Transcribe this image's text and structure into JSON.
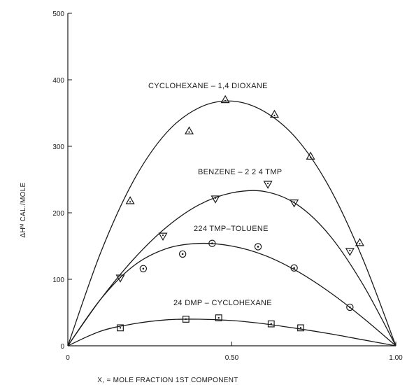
{
  "chart_data": {
    "type": "scatter",
    "xlabel": "X, = MOLE FRACTION 1ST COMPONENT",
    "ylabel": "ΔHᴹ CAL./MOLE",
    "xlim": [
      0,
      1
    ],
    "ylim": [
      0,
      500
    ],
    "x_ticks": [
      {
        "value": 0,
        "label": "0"
      },
      {
        "value": 0.5,
        "label": "0.50"
      },
      {
        "value": 1,
        "label": "1.00"
      }
    ],
    "y_ticks": [
      {
        "value": 0,
        "label": "0"
      },
      {
        "value": 100,
        "label": "100"
      },
      {
        "value": 200,
        "label": "200"
      },
      {
        "value": 300,
        "label": "300"
      },
      {
        "value": 400,
        "label": "400"
      },
      {
        "value": 500,
        "label": "500"
      }
    ],
    "series": [
      {
        "name": "CYCLOHEXANE – 1,4 DIOXANE",
        "marker": "triangle-up",
        "points": [
          [
            0.19,
            218
          ],
          [
            0.37,
            323
          ],
          [
            0.48,
            370
          ],
          [
            0.63,
            348
          ],
          [
            0.74,
            285
          ],
          [
            0.89,
            155
          ]
        ],
        "curve": [
          [
            0,
            0
          ],
          [
            0.1,
            140
          ],
          [
            0.2,
            248
          ],
          [
            0.3,
            320
          ],
          [
            0.4,
            358
          ],
          [
            0.5,
            368
          ],
          [
            0.6,
            352
          ],
          [
            0.7,
            310
          ],
          [
            0.8,
            236
          ],
          [
            0.9,
            130
          ],
          [
            1,
            0
          ]
        ]
      },
      {
        "name": "BENZENE – 2,2,4 TMP",
        "marker": "triangle-down",
        "points": [
          [
            0.16,
            102
          ],
          [
            0.29,
            165
          ],
          [
            0.45,
            221
          ],
          [
            0.61,
            243
          ],
          [
            0.69,
            215
          ],
          [
            0.86,
            142
          ]
        ],
        "curve": [
          [
            0,
            0
          ],
          [
            0.1,
            70
          ],
          [
            0.2,
            130
          ],
          [
            0.3,
            178
          ],
          [
            0.4,
            212
          ],
          [
            0.5,
            230
          ],
          [
            0.6,
            232
          ],
          [
            0.7,
            212
          ],
          [
            0.8,
            165
          ],
          [
            0.9,
            92
          ],
          [
            1,
            0
          ]
        ]
      },
      {
        "name": "224 TMP – TOLUENE",
        "marker": "circle",
        "points": [
          [
            0.23,
            116
          ],
          [
            0.35,
            138
          ],
          [
            0.44,
            154
          ],
          [
            0.58,
            149
          ],
          [
            0.69,
            117
          ],
          [
            0.86,
            58
          ]
        ],
        "curve": [
          [
            0,
            0
          ],
          [
            0.1,
            70
          ],
          [
            0.2,
            120
          ],
          [
            0.3,
            146
          ],
          [
            0.4,
            154
          ],
          [
            0.5,
            150
          ],
          [
            0.6,
            136
          ],
          [
            0.7,
            112
          ],
          [
            0.8,
            80
          ],
          [
            0.9,
            42
          ],
          [
            1,
            0
          ]
        ]
      },
      {
        "name": "24 DMP – CYCLOHEXANE",
        "marker": "square",
        "points": [
          [
            0.16,
            27
          ],
          [
            0.36,
            40
          ],
          [
            0.46,
            42
          ],
          [
            0.62,
            33
          ],
          [
            0.71,
            27
          ]
        ],
        "curve": [
          [
            0,
            0
          ],
          [
            0.1,
            22
          ],
          [
            0.2,
            33
          ],
          [
            0.3,
            39
          ],
          [
            0.4,
            40
          ],
          [
            0.5,
            38
          ],
          [
            0.6,
            33
          ],
          [
            0.7,
            26
          ],
          [
            0.8,
            18
          ],
          [
            0.9,
            9
          ],
          [
            1,
            0
          ]
        ]
      }
    ],
    "annotations": [
      {
        "series": 0,
        "text": "CYCLOHEXANE – 1,4 DIOXANE"
      },
      {
        "series": 1,
        "text": "BENZENE – 2 2 4 TMP"
      },
      {
        "series": 2,
        "text": "224 TMP–TOLUENE"
      },
      {
        "series": 3,
        "text": "24 DMP – CYCLOHEXANE"
      }
    ],
    "grid": false,
    "legend": "none"
  }
}
